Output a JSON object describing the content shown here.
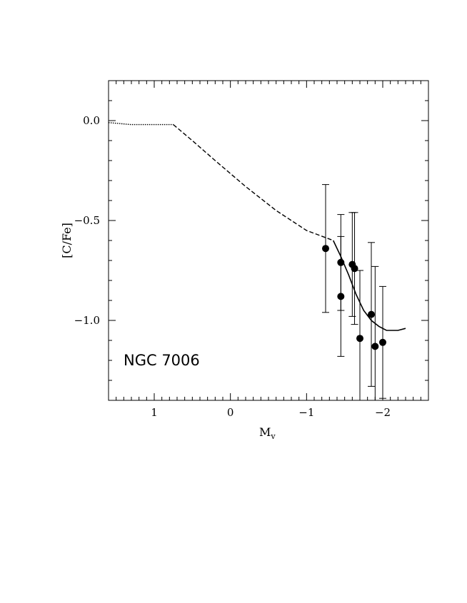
{
  "chart_data": {
    "type": "scatter",
    "annotation": "NGC 7006",
    "ylabel": "[C/Fe]",
    "xlabel_main": "M",
    "xlabel_sub": "v",
    "xlim": [
      1.6,
      -2.6
    ],
    "ylim": [
      -1.4,
      0.2
    ],
    "x_axis_reversed": true,
    "x_ticks": [
      1,
      0,
      -1,
      -2
    ],
    "x_tick_labels": [
      "1",
      "0",
      "−1",
      "−2"
    ],
    "y_ticks": [
      0.0,
      -0.5,
      -1.0
    ],
    "y_tick_labels": [
      "0.0",
      "−0.5",
      "−1.0"
    ],
    "grid": false,
    "points": [
      {
        "x": -1.25,
        "y": -0.64,
        "err": 0.32
      },
      {
        "x": -1.45,
        "y": -0.71,
        "err": 0.24
      },
      {
        "x": -1.45,
        "y": -0.88,
        "err": 0.3
      },
      {
        "x": -1.6,
        "y": -0.72,
        "err": 0.26
      },
      {
        "x": -1.63,
        "y": -0.74,
        "err": 0.28
      },
      {
        "x": -1.7,
        "y": -1.09,
        "err": 0.34
      },
      {
        "x": -1.85,
        "y": -0.97,
        "err": 0.36
      },
      {
        "x": -1.9,
        "y": -1.13,
        "err": 0.4
      },
      {
        "x": -2.0,
        "y": -1.11,
        "err": 0.28
      }
    ],
    "lines": [
      {
        "style": "dotted",
        "points": [
          [
            1.6,
            -0.01
          ],
          [
            1.3,
            -0.02
          ],
          [
            0.75,
            -0.02
          ]
        ]
      },
      {
        "style": "dashed",
        "points": [
          [
            0.75,
            -0.02
          ],
          [
            0.5,
            -0.1
          ],
          [
            0.2,
            -0.2
          ],
          [
            -0.2,
            -0.33
          ],
          [
            -0.6,
            -0.45
          ],
          [
            -1.0,
            -0.55
          ],
          [
            -1.35,
            -0.6
          ]
        ]
      },
      {
        "style": "solid",
        "points": [
          [
            -1.35,
            -0.6
          ],
          [
            -1.45,
            -0.68
          ],
          [
            -1.55,
            -0.77
          ],
          [
            -1.65,
            -0.87
          ],
          [
            -1.75,
            -0.95
          ],
          [
            -1.85,
            -1.0
          ],
          [
            -1.95,
            -1.03
          ],
          [
            -2.05,
            -1.05
          ],
          [
            -2.2,
            -1.05
          ],
          [
            -2.3,
            -1.04
          ]
        ]
      }
    ]
  }
}
